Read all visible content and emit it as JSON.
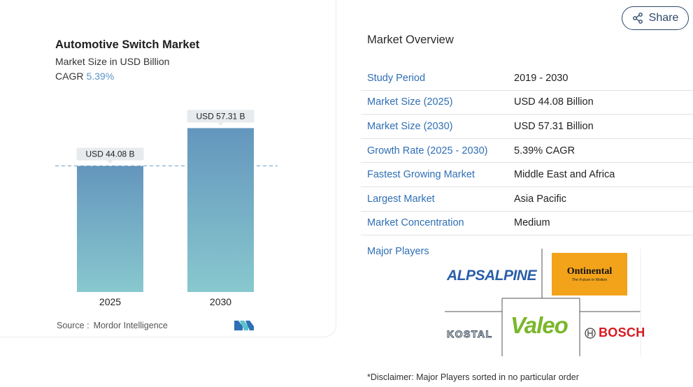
{
  "chart": {
    "title": "Automotive Switch Market",
    "subtitle": "Market Size in USD Billion",
    "cagr_label": "CAGR",
    "cagr_value": "5.39%",
    "source_label": "Source :",
    "source_name": "Mordor Intelligence",
    "logo_name": "mordor-intelligence-logo"
  },
  "chart_data": {
    "type": "bar",
    "title": "Automotive Switch Market",
    "subtitle": "Market Size in USD Billion",
    "categories": [
      "2025",
      "2030"
    ],
    "values": [
      44.08,
      57.31
    ],
    "data_labels": [
      "USD 44.08 B",
      "USD 57.31 B"
    ],
    "ylim": [
      0,
      64
    ],
    "reference_line": 44.08,
    "grid": false,
    "colors": {
      "bar_top": "#6496bd",
      "bar_bottom": "#88c8ce",
      "label_bg": "#e7ebee",
      "dash": "#6a9fc6"
    }
  },
  "share": {
    "label": "Share",
    "icon": "share-icon"
  },
  "overview": {
    "title": "Market Overview",
    "rows": [
      {
        "key": "Study Period",
        "value": "2019 - 2030"
      },
      {
        "key": "Market Size (2025)",
        "value": "USD 44.08 Billion"
      },
      {
        "key": "Market Size (2030)",
        "value": "USD 57.31 Billion"
      },
      {
        "key": "Growth Rate (2025 - 2030)",
        "value": "5.39% CAGR"
      },
      {
        "key": "Fastest Growing Market",
        "value": "Middle East and Africa"
      },
      {
        "key": "Largest Market",
        "value": "Asia Pacific"
      },
      {
        "key": "Market Concentration",
        "value": "Medium"
      }
    ]
  },
  "major_players": {
    "label": "Major Players",
    "logos": [
      {
        "name": "ALPSALPINE",
        "text": "ALPSALPINE"
      },
      {
        "name": "Continental",
        "text": "Ontinental",
        "tagline": "The Future in Motion"
      },
      {
        "name": "KOSTAL",
        "text": "KOSTAL"
      },
      {
        "name": "Valeo",
        "text": "Valeo"
      },
      {
        "name": "BOSCH",
        "text": "BOSCH"
      }
    ]
  },
  "disclaimer": "*Disclaimer: Major Players sorted in no particular order"
}
